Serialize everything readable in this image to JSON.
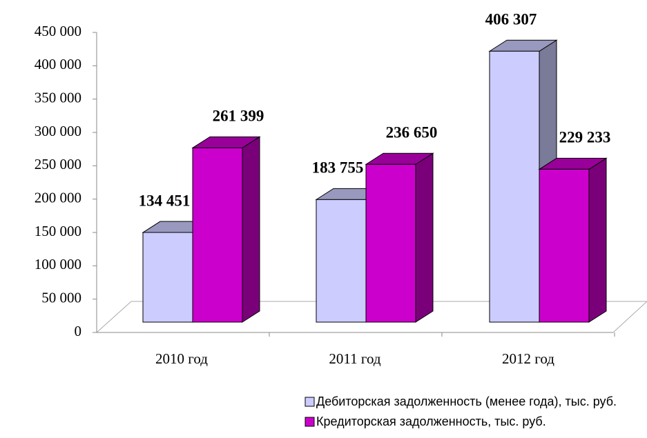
{
  "chart_data": {
    "type": "bar3d",
    "categories": [
      "2010 год",
      "2011 год",
      "2012 год"
    ],
    "series": [
      {
        "name": "Дебиторская задолженность (менее года), тыс. руб.",
        "color": "#ccccff",
        "values": [
          134451,
          183755,
          406307
        ],
        "value_labels": [
          "134 451",
          "183 755",
          "406 307"
        ]
      },
      {
        "name": "Кредиторская задолженность, тыс. руб.",
        "color": "#cc00cc",
        "values": [
          261399,
          236650,
          229233
        ],
        "value_labels": [
          "261 399",
          "236 650",
          "229 233"
        ]
      }
    ],
    "ylim": [
      0,
      450000
    ],
    "yticks": [
      0,
      {
        "value": 50000,
        "label": "50 000"
      },
      {
        "value": 100000,
        "label": "100 000"
      },
      {
        "value": 150000,
        "label": "150 000"
      },
      {
        "value": 200000,
        "label": "200 000"
      },
      {
        "value": 250000,
        "label": "250 000"
      },
      {
        "value": 300000,
        "label": "300 000"
      },
      {
        "value": 350000,
        "label": "350 000"
      },
      {
        "value": 400000,
        "label": "400 000"
      },
      {
        "value": 450000,
        "label": "450 000"
      }
    ]
  }
}
